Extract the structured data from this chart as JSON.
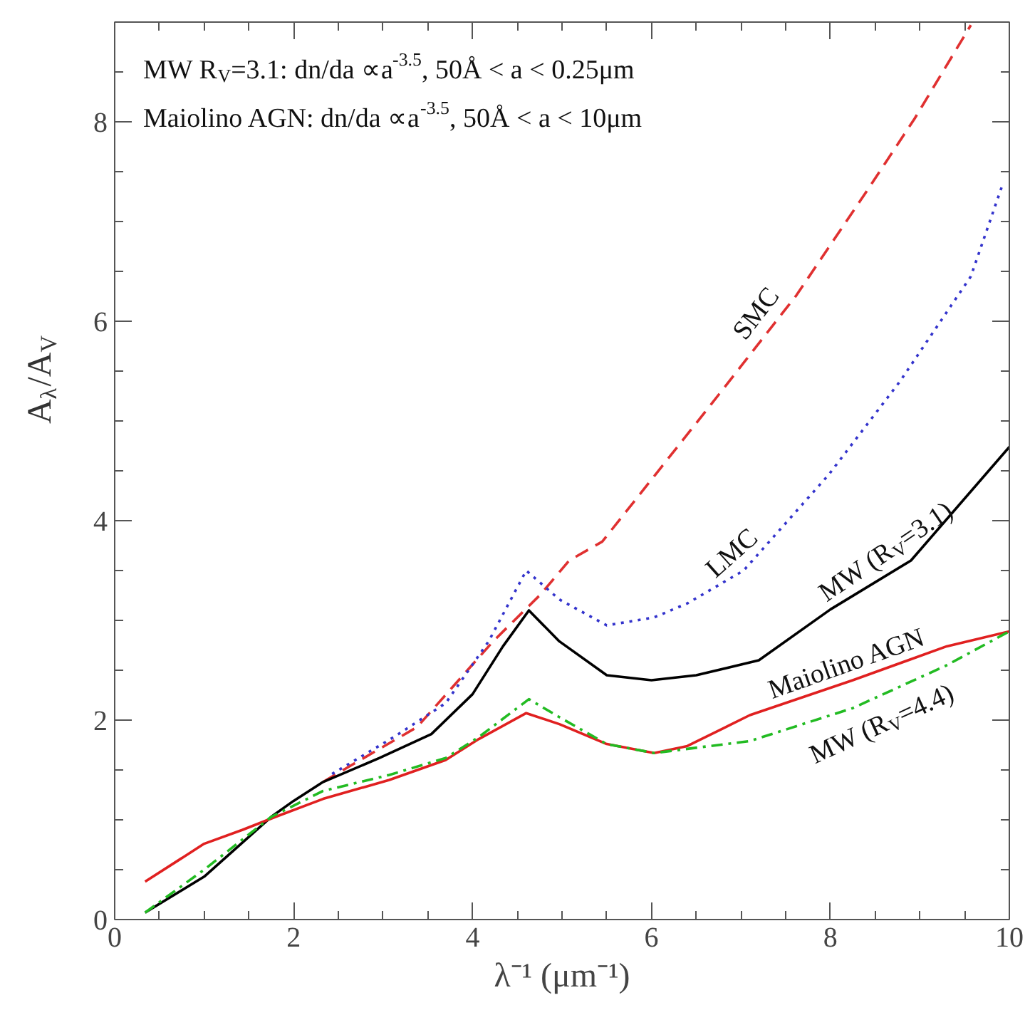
{
  "chart_data": {
    "type": "line",
    "xlabel": "λ⁻¹ (μm⁻¹)",
    "ylabel": "A$_{λ}$/A$_{V}$",
    "xlim": [
      0,
      10
    ],
    "ylim": [
      0,
      9
    ],
    "xticks": [
      0,
      {
        "value": 0.5,
        "label": null
      },
      2,
      {
        "value": 1,
        "label": null
      },
      {
        "value": 1.5,
        "label": null
      },
      {
        "value": 2.5,
        "label": null
      },
      {
        "value": 3,
        "label": null
      },
      {
        "value": 3.5,
        "label": null
      },
      4,
      {
        "value": 4.5,
        "label": null
      },
      {
        "value": 5,
        "label": null
      },
      {
        "value": 5.5,
        "label": null
      },
      6,
      {
        "value": 6.5,
        "label": null
      },
      {
        "value": 7,
        "label": null
      },
      {
        "value": 7.5,
        "label": null
      },
      8,
      {
        "value": 8.5,
        "label": null
      },
      {
        "value": 9,
        "label": null
      },
      {
        "value": 9.5,
        "label": null
      },
      10
    ],
    "yticks": [
      0,
      {
        "value": 0.5,
        "label": null
      },
      {
        "value": 1,
        "label": null
      },
      {
        "value": 1.5,
        "label": null
      },
      2,
      {
        "value": 2.5,
        "label": null
      },
      {
        "value": 3,
        "label": null
      },
      {
        "value": 3.5,
        "label": null
      },
      4,
      {
        "value": 4.5,
        "label": null
      },
      {
        "value": 5,
        "label": null
      },
      {
        "value": 5.5,
        "label": null
      },
      6,
      {
        "value": 6.5,
        "label": null
      },
      {
        "value": 7,
        "label": null
      },
      {
        "value": 7.5,
        "label": null
      },
      8,
      {
        "value": 8.5,
        "label": null
      },
      {
        "value": 9,
        "label": null
      }
    ],
    "grid": false,
    "annotations": [
      "MW R$_{V}$=3.1: dn/da ∝a$^{-3.5}$, 50Å < a < 0.25μm",
      "Maiolino AGN: dn/da ∝a$^{-3.5}$, 50Å < a < 10μm"
    ],
    "series": [
      {
        "name": "SMC",
        "color": "#e03030",
        "line_style": "dashed",
        "x": [
          2.33,
          2.65,
          3.38,
          4.23,
          4.76,
          5.08,
          5.45,
          6.67,
          7.62,
          8.41,
          8.94,
          9.57
        ],
        "values": [
          1.38,
          1.55,
          1.93,
          2.79,
          3.26,
          3.6,
          3.79,
          5.17,
          6.26,
          7.31,
          8.03,
          8.97
        ]
      },
      {
        "name": "LMC",
        "color": "#3333cc",
        "line_style": "dotted",
        "x": [
          2.43,
          3.12,
          3.7,
          4.18,
          4.6,
          4.97,
          5.5,
          6.03,
          6.4,
          7.03,
          7.98,
          8.78,
          9.57,
          9.92
        ],
        "values": [
          1.46,
          1.83,
          2.17,
          2.79,
          3.5,
          3.21,
          2.95,
          3.03,
          3.17,
          3.5,
          4.46,
          5.4,
          6.45,
          7.36
        ]
      },
      {
        "name": "MW (R$_{V}$=3.1)",
        "color": "#000000",
        "line_style": "solid",
        "x": [
          0.34,
          1.0,
          1.75,
          2.0,
          2.33,
          2.96,
          3.54,
          4.0,
          4.34,
          4.63,
          4.97,
          5.5,
          6.0,
          6.5,
          7.2,
          8.0,
          8.9,
          10.0
        ],
        "values": [
          0.07,
          0.43,
          1.03,
          1.19,
          1.38,
          1.62,
          1.86,
          2.26,
          2.74,
          3.1,
          2.79,
          2.45,
          2.4,
          2.45,
          2.6,
          3.11,
          3.6,
          4.74
        ]
      },
      {
        "name": "Maiolino AGN",
        "color": "#e02020",
        "line_style": "solid",
        "x": [
          0.34,
          1.0,
          1.43,
          1.8,
          2.33,
          3.07,
          3.7,
          4.07,
          4.6,
          4.97,
          5.5,
          6.03,
          6.4,
          7.1,
          8.25,
          9.3,
          10.0
        ],
        "values": [
          0.38,
          0.76,
          0.9,
          1.03,
          1.21,
          1.4,
          1.6,
          1.81,
          2.07,
          1.96,
          1.76,
          1.67,
          1.74,
          2.05,
          2.4,
          2.74,
          2.89
        ]
      },
      {
        "name": "MW (R$_{V}$=4.4)",
        "color": "#22bb22",
        "line_style": "dashdot",
        "x": [
          0.34,
          1.0,
          1.75,
          2.33,
          3.07,
          3.7,
          4.07,
          4.63,
          4.97,
          5.5,
          6.03,
          7.1,
          8.25,
          9.3,
          10.0
        ],
        "values": [
          0.07,
          0.5,
          1.03,
          1.29,
          1.45,
          1.62,
          1.83,
          2.21,
          2.03,
          1.76,
          1.67,
          1.79,
          2.12,
          2.55,
          2.89
        ]
      }
    ]
  }
}
